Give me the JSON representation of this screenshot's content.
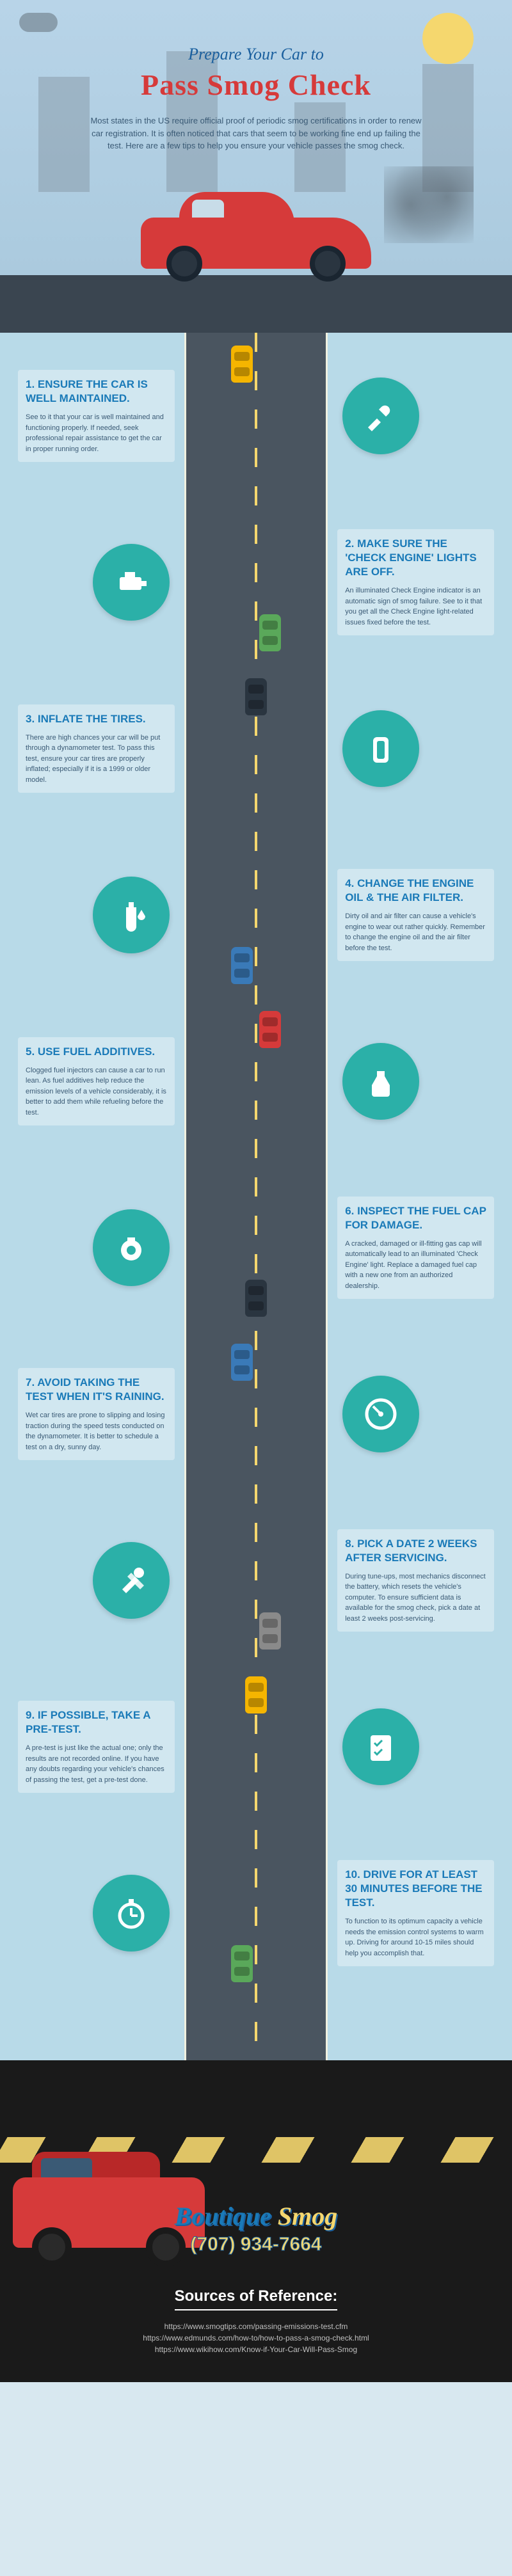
{
  "header": {
    "subtitle": "Prepare Your Car to",
    "title": "Pass Smog Check",
    "intro": "Most states in the US require official proof of periodic smog certifications in order to renew car registration. It is often noticed that cars that seem to be working fine end up failing the test. Here are a few tips to help you ensure your vehicle passes the smog check.",
    "title_color": "#d63a3a",
    "subtitle_color": "#1a5f9e"
  },
  "tips": [
    {
      "n": 1,
      "heading": "1. ENSURE THE CAR IS WELL MAINTAINED.",
      "body": "See to it that your car is well maintained and functioning properly. If needed, seek professional repair assistance to get the car in proper running order.",
      "side": "left",
      "icon": "wrench",
      "car_color": "#f5b500"
    },
    {
      "n": 2,
      "heading": "2. MAKE SURE THE 'CHECK ENGINE' LIGHTS ARE OFF.",
      "body": "An illuminated Check Engine indicator is an automatic sign of smog failure. See to it that you get all the Check Engine light-related issues fixed before the test.",
      "side": "right",
      "icon": "engine",
      "car_color": "#5aa85a"
    },
    {
      "n": 3,
      "heading": "3. INFLATE THE TIRES.",
      "body": "There are high chances your car will be put through a dynamometer test. To pass this test, ensure your car tires are properly inflated; especially if it is a 1999 or older model.",
      "side": "left",
      "icon": "tire",
      "car_color": "#2a3540"
    },
    {
      "n": 4,
      "heading": "4. CHANGE THE ENGINE OIL & THE AIR FILTER.",
      "body": "Dirty oil and air filter can cause a vehicle's engine to wear out rather quickly. Remember to change the engine oil and the air filter before the test.",
      "side": "right",
      "icon": "oil",
      "car_color": "#3a7ab8"
    },
    {
      "n": 5,
      "heading": "5. USE FUEL ADDITIVES.",
      "body": "Clogged fuel injectors can cause a car to run lean. As fuel additives help reduce the emission levels of a vehicle considerably, it is better to add them while refueling before the test.",
      "side": "left",
      "icon": "additive",
      "car_color": "#d63a3a"
    },
    {
      "n": 6,
      "heading": "6. INSPECT THE FUEL CAP FOR DAMAGE.",
      "body": "A cracked, damaged or ill-fitting gas cap will automatically lead to an illuminated 'Check Engine' light. Replace a damaged fuel cap with a new one from an authorized dealership.",
      "side": "right",
      "icon": "cap",
      "car_color": "#2a3540"
    },
    {
      "n": 7,
      "heading": "7. AVOID TAKING THE TEST WHEN IT'S RAINING.",
      "body": "Wet car tires are prone to slipping and losing traction during the speed tests conducted on the dynamometer. It is better to schedule a test on a dry, sunny day.",
      "side": "left",
      "icon": "gauge",
      "car_color": "#3a7ab8"
    },
    {
      "n": 8,
      "heading": "8. PICK A DATE 2 WEEKS AFTER SERVICING.",
      "body": "During tune-ups, most mechanics disconnect the battery, which resets the vehicle's computer. To ensure sufficient data is available for the smog check, pick a date at least 2 weeks post-servicing.",
      "side": "right",
      "icon": "tools",
      "car_color": "#8a8a8a"
    },
    {
      "n": 9,
      "heading": "9. IF POSSIBLE, TAKE A PRE-TEST.",
      "body": "A pre-test is just like the actual one; only the results are not recorded online. If you have any doubts regarding your vehicle's chances of passing the test, get a pre-test done.",
      "side": "left",
      "icon": "checklist",
      "car_color": "#f5b500"
    },
    {
      "n": 10,
      "heading": "10. DRIVE FOR AT LEAST 30 MINUTES BEFORE THE TEST.",
      "body": "To function to its optimum capacity a vehicle needs the emission control systems to warm up. Driving for around 10-15 miles should help you accomplish that.",
      "side": "right",
      "icon": "stopwatch",
      "car_color": "#5aa85a"
    }
  ],
  "icon_bg": "#2bb0a8",
  "footer": {
    "brand": "Boutique Smog",
    "brand_first": "Boutique",
    "brand_second": " Smog",
    "phone": "(707) 934-7664",
    "sources_title": "Sources of Reference:",
    "sources": [
      "https://www.smogtips.com/passing-emissions-test.cfm",
      "https://www.edmunds.com/how-to/how-to-pass-a-smog-check.html",
      "https://www.wikihow.com/Know-if-Your-Car-Will-Pass-Smog"
    ],
    "car_color": "#d63a3a",
    "road_mark_color": "#f5d76e"
  }
}
